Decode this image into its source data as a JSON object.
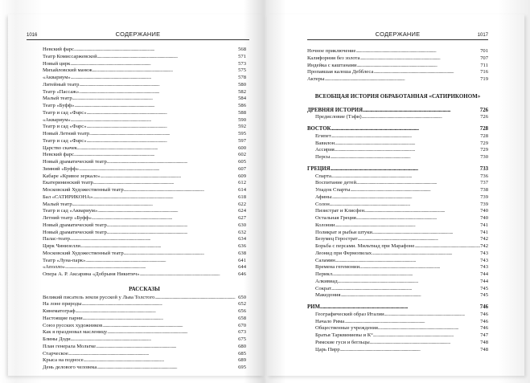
{
  "left_page": {
    "number": "1016",
    "header": "СОДЕРЖАНИЕ",
    "entries": [
      [
        "Невский фарс",
        "568"
      ],
      [
        "Театр Комиссаржевской",
        "571"
      ],
      [
        "Новый цирк",
        "573"
      ],
      [
        "Михайловский манеж",
        "575"
      ],
      [
        "«Аквариум»",
        "578"
      ],
      [
        "Литейный театр",
        "580"
      ],
      [
        "Театр «Пассаж»",
        "582"
      ],
      [
        "Малый театр",
        "584"
      ],
      [
        "Театр «Буфф»",
        "586"
      ],
      [
        "Театр и сад «Фарс»",
        "588"
      ],
      [
        "«Аквариум»",
        "590"
      ],
      [
        "Театр и сад «Фарс»",
        "592"
      ],
      [
        "Новый Летний театр",
        "595"
      ],
      [
        "Театр и сад «Фарс»",
        "597"
      ],
      [
        "Царство скачек",
        "600"
      ],
      [
        "Невский фарс",
        "602"
      ],
      [
        "Новый драматический театр",
        "605"
      ],
      [
        "Зимний «Буфф»",
        "607"
      ],
      [
        "Кабаре «Кривое зеркало»",
        "609"
      ],
      [
        "Екатерининский театр",
        "612"
      ],
      [
        "Московский Художественный театр",
        "614"
      ],
      [
        "Бал «САТИРИКОНА»",
        "618"
      ],
      [
        "Малый театр",
        "622"
      ],
      [
        "Театр и сад «Аквариум»",
        "624"
      ],
      [
        "Летний театр «Буфф»",
        "627"
      ],
      [
        "Новый драматический театр",
        "630"
      ],
      [
        "Новый драматический театр",
        "632"
      ],
      [
        "Палас-театр",
        "634"
      ],
      [
        "Цирк Чинизелли",
        "636"
      ],
      [
        "Московский Художественный театр",
        "638"
      ],
      [
        "Театр «Луна-парк»",
        "641"
      ],
      [
        "«Аполло»",
        "644"
      ],
      [
        "Опера А. Р. Аксарина «Добрыня Никитич»",
        "646"
      ]
    ],
    "section_title": "РАССКАЗЫ",
    "stories": [
      [
        "Великий писатель земли русской у Льва Толстого",
        "650"
      ],
      [
        "На лоне природы",
        "652"
      ],
      [
        "Кинематограф",
        "656"
      ],
      [
        "Настоящие парни",
        "658"
      ],
      [
        "Союз русских художников",
        "670"
      ],
      [
        "Как я праздновал масленицу",
        "673"
      ],
      [
        "Блины Доди",
        "675"
      ],
      [
        "План генерала Мольтке",
        "680"
      ],
      [
        "Старческое",
        "685"
      ],
      [
        "Крыса на подносе",
        "689"
      ],
      [
        "День делового человека",
        "695"
      ]
    ]
  },
  "right_page": {
    "number": "1017",
    "header": "СОДЕРЖАНИЕ",
    "entries": [
      [
        "Ночное приключение",
        "701"
      ],
      [
        "Калифорния без золота",
        "707"
      ],
      [
        "Индейка с каштанами",
        "711"
      ],
      [
        "Пропавшая калоша Дебблеса",
        "716"
      ],
      [
        "Актеры",
        "719"
      ]
    ],
    "section_title": "ВСЕОБЩАЯ ИСТОРИЯ ОБРАБОТАННАЯ «САТИРИКОНОМ»",
    "parts": [
      {
        "title": "ДРЕВНЯЯ ИСТОРИЯ",
        "page": "726",
        "items": [
          [
            "Предисловие (Тэфи)",
            "726"
          ]
        ]
      },
      {
        "title": "ВОСТОК",
        "page": "728",
        "items": [
          [
            "Египет",
            "728"
          ],
          [
            "Вавилон",
            "729"
          ],
          [
            "Ассирия",
            "729"
          ],
          [
            "Персы",
            "730"
          ]
        ]
      },
      {
        "title": "ГРЕЦИЯ",
        "page": "733",
        "items": [
          [
            "Спарта",
            "736"
          ],
          [
            "Воспитание детей",
            "737"
          ],
          [
            "Упадок Спарты",
            "738"
          ],
          [
            "Афины",
            "739"
          ],
          [
            "Солон",
            "739"
          ],
          [
            "Пизистрат и Клисфен",
            "740"
          ],
          [
            "Остальная Греция",
            "740"
          ],
          [
            "Колонии",
            "741"
          ],
          [
            "Поликрат и рыбьи штуки",
            "741"
          ],
          [
            "Безумец Герострат",
            "742"
          ],
          [
            "Борьба с персами. Мильтиад при Марафоне",
            "742"
          ],
          [
            "Леонид при Фермопилах",
            "743"
          ],
          [
            "Саламин",
            "743"
          ],
          [
            "Времена гегемонии",
            "743"
          ],
          [
            "Перикл",
            "744"
          ],
          [
            "Алкивиад",
            "744"
          ],
          [
            "Сократ",
            "745"
          ],
          [
            "Македония",
            "745"
          ]
        ]
      },
      {
        "title": "РИМ",
        "page": "746",
        "items": [
          [
            "Географический образ Италии",
            "746"
          ],
          [
            "Начало Рима",
            "746"
          ],
          [
            "Общественные учреждения",
            "746"
          ],
          [
            "Братья Тарквиниевы и К°",
            "747"
          ],
          [
            "Римские гуси и бегльцы",
            "748"
          ],
          [
            "Царь Пирр",
            "748"
          ]
        ]
      }
    ]
  }
}
